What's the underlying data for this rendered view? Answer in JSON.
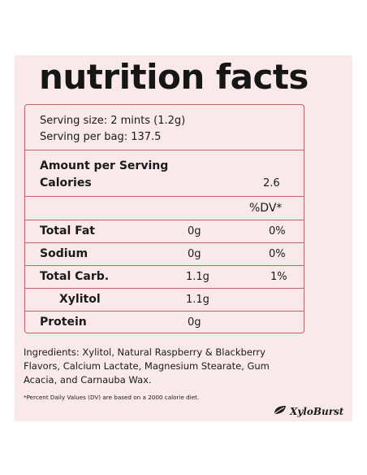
{
  "title": "nutrition facts",
  "serving": {
    "size": "Serving size: 2 mints (1.2g)",
    "per_bag": "Serving per bag: 137.5"
  },
  "amount_label": "Amount per Serving",
  "calories": {
    "label": "Calories",
    "value": "2.6"
  },
  "dv_header": "%DV*",
  "nutrients": [
    {
      "name": "Total Fat",
      "amount": "0g",
      "dv": "0%"
    },
    {
      "name": "Sodium",
      "amount": "0g",
      "dv": "0%"
    },
    {
      "name": "Total Carb.",
      "amount": "1.1g",
      "dv": "1%"
    },
    {
      "name": "Xylitol",
      "amount": "1.1g",
      "dv": ""
    },
    {
      "name": "Protein",
      "amount": "0g",
      "dv": ""
    }
  ],
  "ingredients": "Ingredients: Xylitol, Natural Raspberry & Blackberry Flavors, Calcium Lactate, Magnesium Stearate, Gum Acacia, and Carnauba Wax.",
  "footnote": "*Percent Daily Values (DV) are based on a 2000 calorie diet.",
  "brand": {
    "name": "XyloBurst",
    "icon": "leaf-logo-icon"
  },
  "colors": {
    "panel": "#f9e9ea",
    "border": "#c2626c",
    "text": "#1b1b1b"
  }
}
